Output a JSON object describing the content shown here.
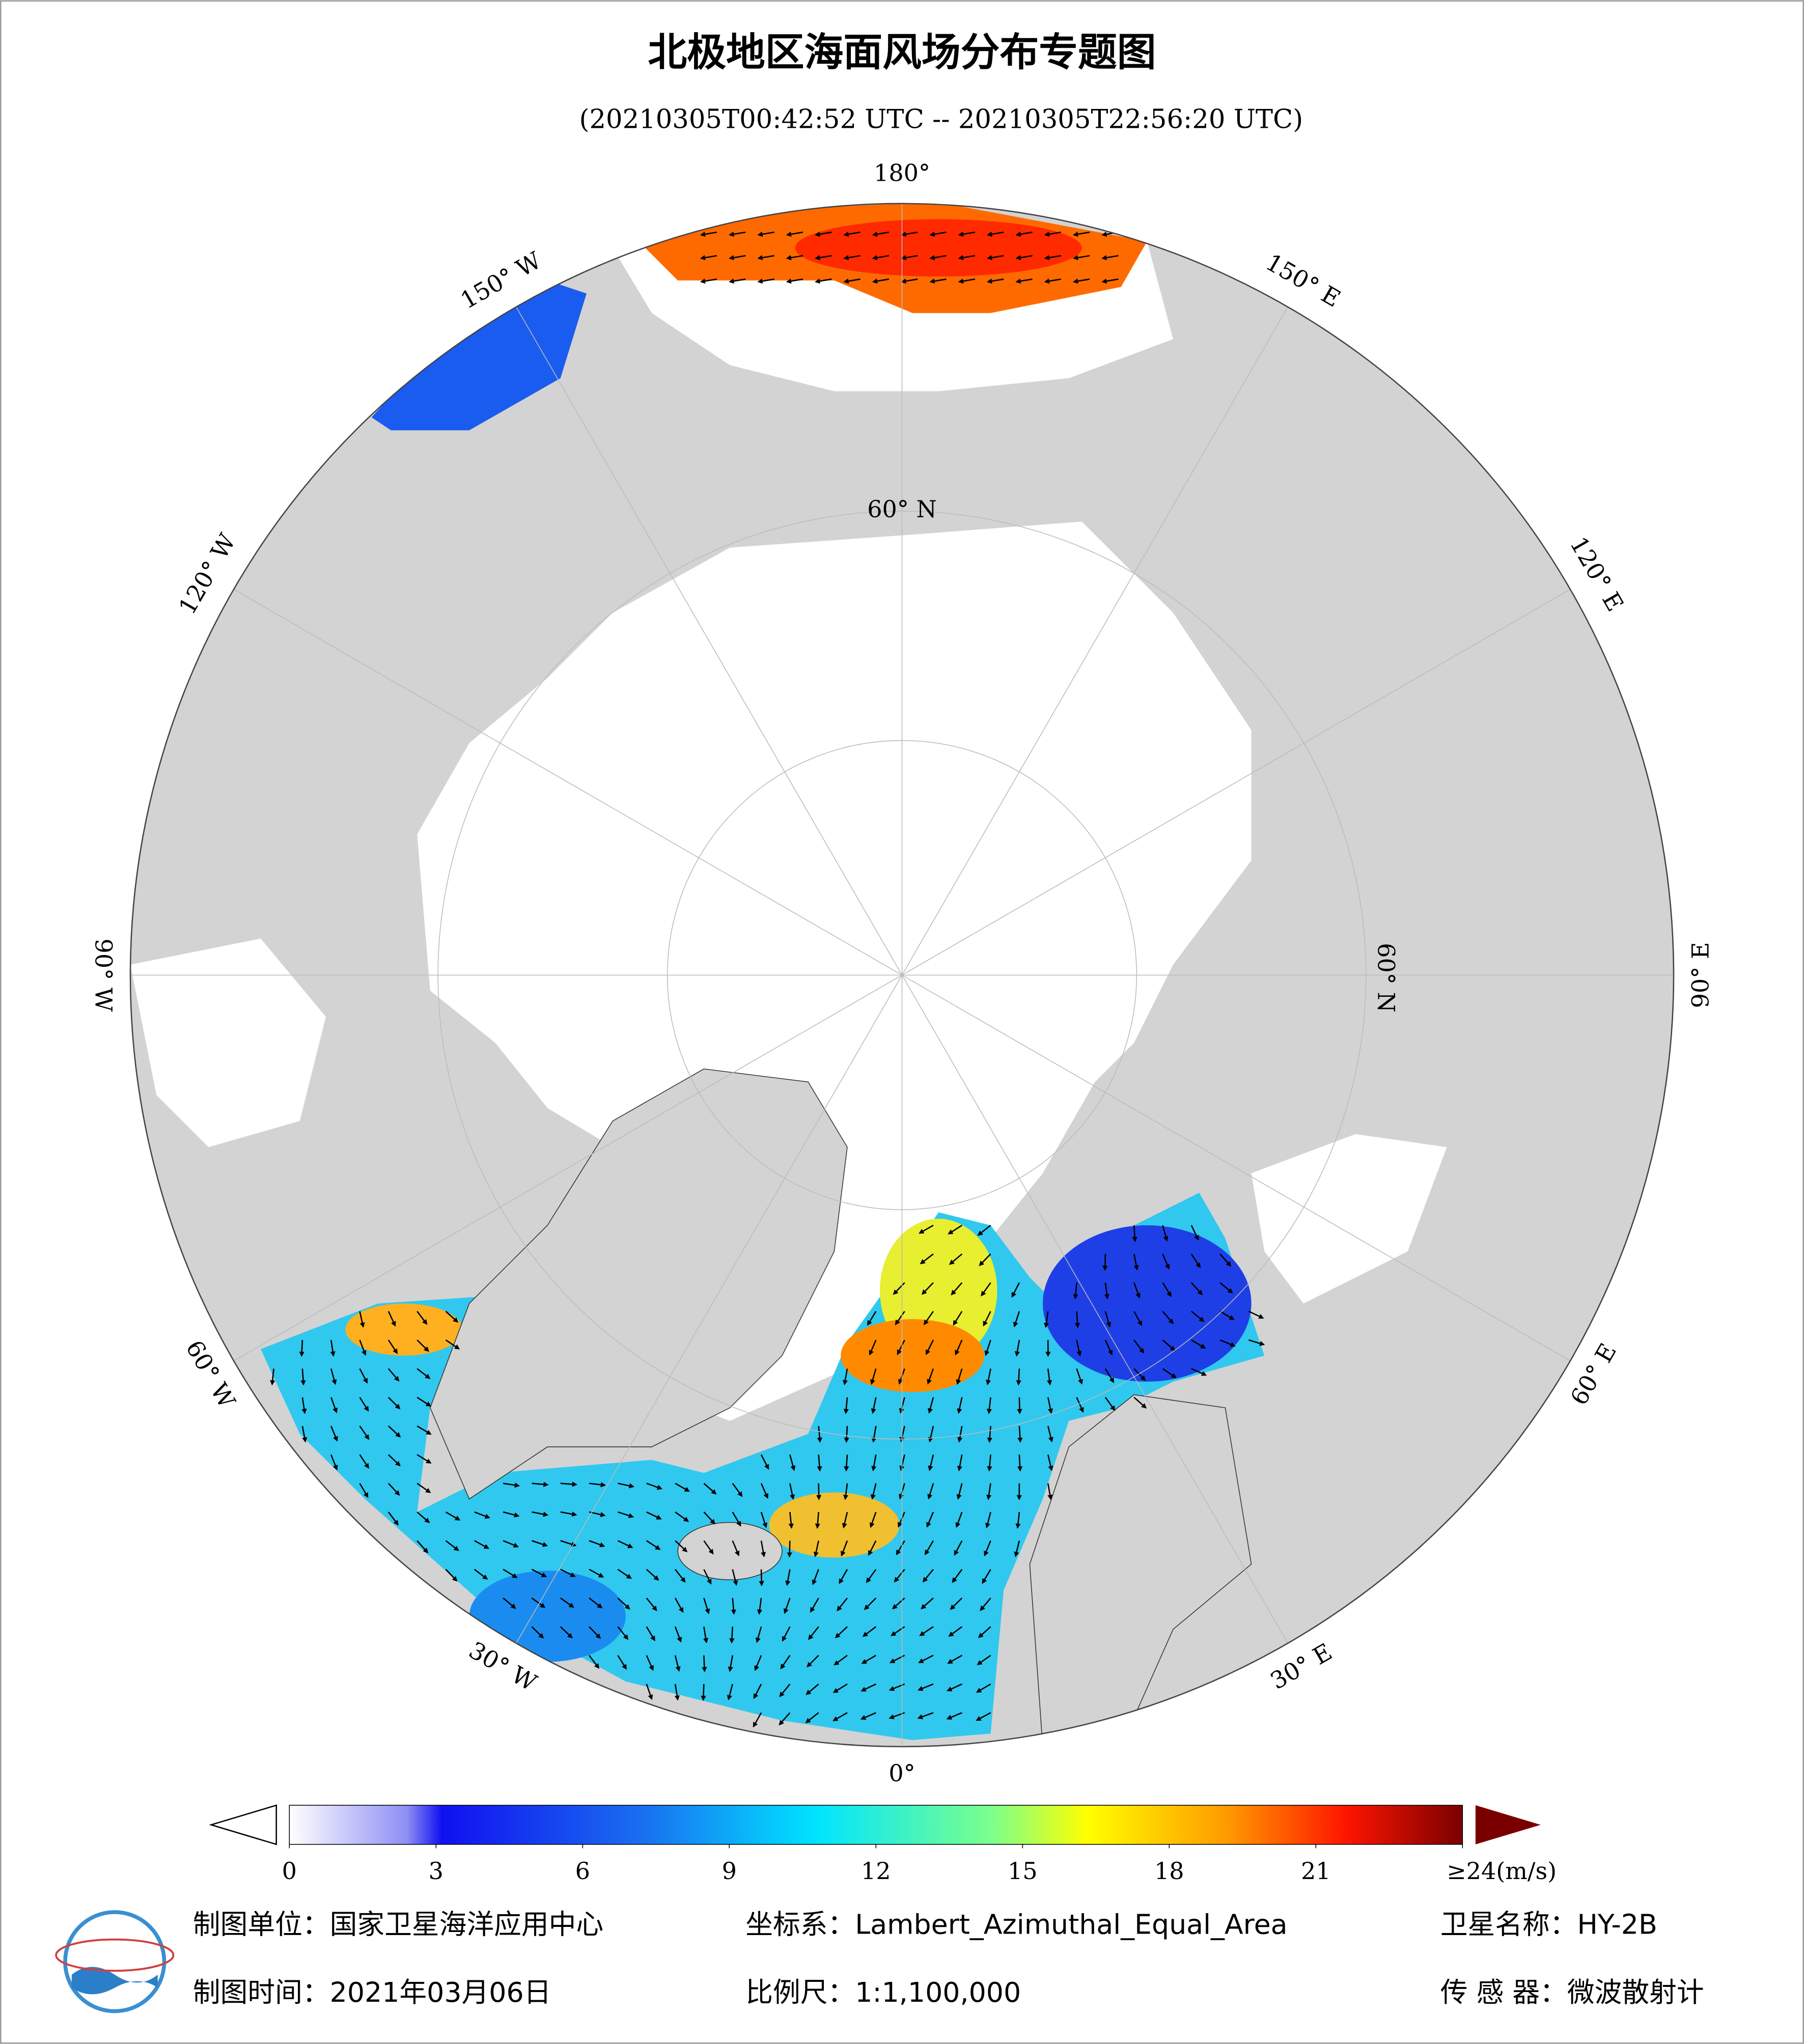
{
  "header": {
    "title": "北极地区海面风场分布专题图",
    "subtitle": "(20210305T00:42:52 UTC -- 20210305T22:56:20 UTC)"
  },
  "map": {
    "longitude_labels": [
      "0°",
      "30° E",
      "60° E",
      "90° E",
      "120° E",
      "150° E",
      "180°",
      "150° W",
      "120° W",
      "90° W",
      "60° W",
      "30° W"
    ],
    "latitude_labels": [
      "60° N",
      "60° N"
    ]
  },
  "colorbar": {
    "lim": [
      0,
      24
    ],
    "ticks": [
      0,
      3,
      6,
      9,
      12,
      15,
      18,
      21,
      {
        "value": 24,
        "label": "≥24(m/s)"
      }
    ]
  },
  "footer": {
    "unit": "制图单位：国家卫星海洋应用中心",
    "projection": "坐标系：Lambert_Azimuthal_Equal_Area",
    "satellite": "卫星名称：HY-2B",
    "date": "制图时间：2021年03月06日",
    "scale": "比例尺：1:1,100,000",
    "sensor": "传 感 器：微波散射计"
  }
}
